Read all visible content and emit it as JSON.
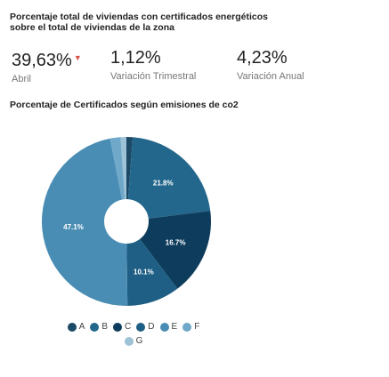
{
  "header": {
    "title": "Porcentaje total de viviendas con certificados energéticos sobre el total de viviendas de la zona"
  },
  "metrics": [
    {
      "value": "39,63%",
      "label": "Abril",
      "trend": "down"
    },
    {
      "value": "1,12%",
      "label": "Variación Trimestral"
    },
    {
      "value": "4,23%",
      "label": "Variación Anual"
    }
  ],
  "chart_title": "Porcentaje de Certificados según emisiones de co2",
  "chart_data": {
    "type": "pie",
    "title": "Porcentaje de Certificados según emisiones de co2",
    "legend_position": "bottom",
    "labels": [
      "A",
      "B",
      "C",
      "D",
      "E",
      "F",
      "G"
    ],
    "values": [
      1.2,
      21.8,
      16.7,
      10.1,
      47.1,
      2.0,
      1.1
    ],
    "data_labels": [
      "",
      "21.8%",
      "16.7%",
      "10.1%",
      "47.1%",
      "",
      ""
    ],
    "colors": [
      "#1c4a67",
      "#23678c",
      "#0e3c5c",
      "#1f5f85",
      "#4a8db4",
      "#6fa8c9",
      "#9ec2d6"
    ]
  },
  "legend": {
    "row1": [
      {
        "label": "A",
        "color": "#1c4a67"
      },
      {
        "label": "B",
        "color": "#23678c"
      },
      {
        "label": "C",
        "color": "#0e3c5c"
      },
      {
        "label": "D",
        "color": "#1f5f85"
      },
      {
        "label": "E",
        "color": "#4a8db4"
      },
      {
        "label": "F",
        "color": "#6fa8c9"
      }
    ],
    "row2": [
      {
        "label": "G",
        "color": "#9ec2d6"
      }
    ]
  }
}
